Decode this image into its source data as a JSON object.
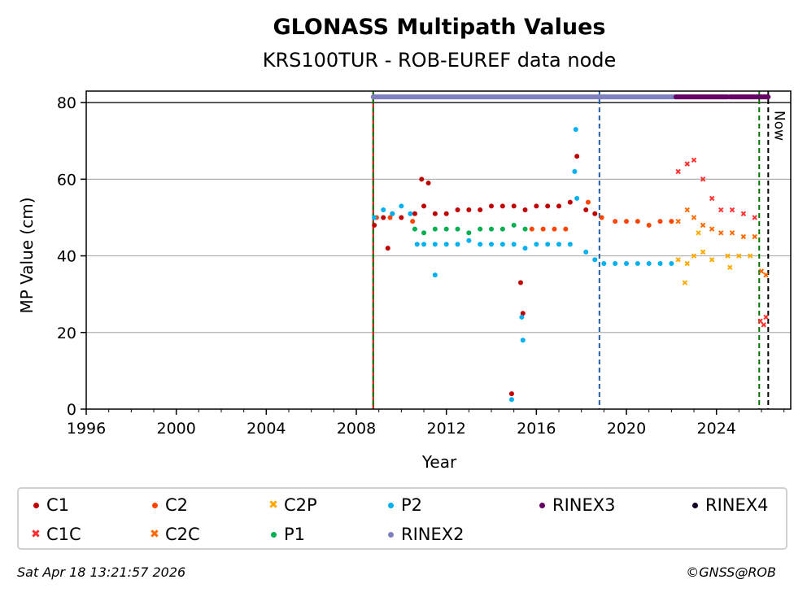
{
  "chart_data": {
    "type": "scatter",
    "title": "GLONASS Multipath Values",
    "subtitle": "KRS100TUR - ROB-EUREF data node",
    "xlabel": "Year",
    "ylabel": "MP Value (cm)",
    "xlim": [
      1996,
      2027.3
    ],
    "ylim": [
      0,
      83
    ],
    "x_ticks": [
      "1996",
      "2000",
      "2004",
      "2008",
      "2012",
      "2016",
      "2020",
      "2024"
    ],
    "y_ticks": [
      "0",
      "20",
      "40",
      "60",
      "80"
    ],
    "grid": "horizontal",
    "now_label": "Now",
    "events": [
      {
        "year": 2008.75,
        "type": "start-marker",
        "color": "#cc0000"
      },
      {
        "year": 2008.75,
        "type": "receiver-change",
        "color": "#007700"
      },
      {
        "year": 2018.8,
        "type": "antenna-change",
        "color": "#1f5fa8"
      },
      {
        "year": 2025.9,
        "type": "receiver-change",
        "color": "#007700"
      },
      {
        "year": 2026.3,
        "type": "now",
        "color": "#000000"
      }
    ],
    "series": [
      {
        "name": "C1",
        "marker": "dot",
        "color": "#c00000",
        "points": [
          [
            2008.8,
            48
          ],
          [
            2009.2,
            50
          ],
          [
            2009.6,
            51
          ],
          [
            2010.0,
            50
          ],
          [
            2010.6,
            51
          ],
          [
            2011.0,
            53
          ],
          [
            2011.5,
            51
          ],
          [
            2012.0,
            51
          ],
          [
            2012.5,
            52
          ],
          [
            2013.0,
            52
          ],
          [
            2013.5,
            52
          ],
          [
            2014.0,
            53
          ],
          [
            2014.5,
            53
          ],
          [
            2015.0,
            53
          ],
          [
            2015.5,
            52
          ],
          [
            2016.0,
            53
          ],
          [
            2016.5,
            53
          ],
          [
            2017.0,
            53
          ],
          [
            2017.5,
            54
          ],
          [
            2017.8,
            66
          ],
          [
            2018.2,
            52
          ],
          [
            2018.6,
            51
          ],
          [
            2010.9,
            60
          ],
          [
            2011.2,
            59
          ],
          [
            2009.4,
            42
          ],
          [
            2014.9,
            4
          ],
          [
            2015.4,
            25
          ],
          [
            2015.3,
            33
          ]
        ]
      },
      {
        "name": "C1C",
        "marker": "x",
        "color": "#ff3030",
        "points": [
          [
            2022.3,
            62
          ],
          [
            2022.7,
            64
          ],
          [
            2023.0,
            65
          ],
          [
            2023.4,
            60
          ],
          [
            2023.8,
            55
          ],
          [
            2024.2,
            52
          ],
          [
            2024.7,
            52
          ],
          [
            2025.2,
            51
          ],
          [
            2025.7,
            50
          ],
          [
            2025.95,
            23
          ],
          [
            2026.1,
            22
          ],
          [
            2026.2,
            24
          ]
        ]
      },
      {
        "name": "C2",
        "marker": "dot",
        "color": "#ff4500",
        "points": [
          [
            2008.9,
            50
          ],
          [
            2009.5,
            50
          ],
          [
            2010.5,
            49
          ],
          [
            2015.8,
            47
          ],
          [
            2016.3,
            47
          ],
          [
            2016.8,
            47
          ],
          [
            2017.3,
            47
          ],
          [
            2018.3,
            54
          ],
          [
            2018.9,
            50
          ],
          [
            2019.5,
            49
          ],
          [
            2020.0,
            49
          ],
          [
            2020.5,
            49
          ],
          [
            2021.0,
            48
          ],
          [
            2021.5,
            49
          ],
          [
            2022.0,
            49
          ]
        ]
      },
      {
        "name": "C2C",
        "marker": "x",
        "color": "#ff6a00",
        "points": [
          [
            2022.3,
            49
          ],
          [
            2022.7,
            52
          ],
          [
            2023.0,
            50
          ],
          [
            2023.4,
            48
          ],
          [
            2023.8,
            47
          ],
          [
            2024.2,
            46
          ],
          [
            2024.7,
            46
          ],
          [
            2025.2,
            45
          ],
          [
            2025.7,
            45
          ],
          [
            2026.0,
            36
          ],
          [
            2026.2,
            35
          ]
        ]
      },
      {
        "name": "C2P",
        "marker": "x",
        "color": "#ffaa00",
        "points": [
          [
            2022.3,
            39
          ],
          [
            2022.7,
            38
          ],
          [
            2023.0,
            40
          ],
          [
            2023.4,
            41
          ],
          [
            2023.8,
            39
          ],
          [
            2024.5,
            40
          ],
          [
            2025.0,
            40
          ],
          [
            2025.5,
            40
          ],
          [
            2022.6,
            33
          ],
          [
            2023.2,
            46
          ],
          [
            2024.6,
            37
          ]
        ]
      },
      {
        "name": "P1",
        "marker": "dot",
        "color": "#00b050",
        "points": [
          [
            2010.6,
            47
          ],
          [
            2011.0,
            46
          ],
          [
            2011.5,
            47
          ],
          [
            2012.0,
            47
          ],
          [
            2012.5,
            47
          ],
          [
            2013.0,
            46
          ],
          [
            2013.5,
            47
          ],
          [
            2014.0,
            47
          ],
          [
            2014.5,
            47
          ],
          [
            2015.0,
            48
          ],
          [
            2015.5,
            47
          ]
        ]
      },
      {
        "name": "P2",
        "marker": "dot",
        "color": "#00b0f0",
        "points": [
          [
            2008.8,
            50
          ],
          [
            2009.2,
            52
          ],
          [
            2009.6,
            51
          ],
          [
            2010.0,
            53
          ],
          [
            2010.4,
            51
          ],
          [
            2010.7,
            43
          ],
          [
            2011.0,
            43
          ],
          [
            2011.5,
            43
          ],
          [
            2012.0,
            43
          ],
          [
            2012.5,
            43
          ],
          [
            2013.0,
            44
          ],
          [
            2013.5,
            43
          ],
          [
            2014.0,
            43
          ],
          [
            2014.5,
            43
          ],
          [
            2015.0,
            43
          ],
          [
            2015.5,
            42
          ],
          [
            2016.0,
            43
          ],
          [
            2016.5,
            43
          ],
          [
            2017.0,
            43
          ],
          [
            2017.5,
            43
          ],
          [
            2017.7,
            62
          ],
          [
            2017.75,
            73
          ],
          [
            2017.8,
            55
          ],
          [
            2018.2,
            41
          ],
          [
            2018.6,
            39
          ],
          [
            2019.0,
            38
          ],
          [
            2019.5,
            38
          ],
          [
            2020.0,
            38
          ],
          [
            2020.5,
            38
          ],
          [
            2021.0,
            38
          ],
          [
            2021.5,
            38
          ],
          [
            2022.0,
            38
          ],
          [
            2014.9,
            2.5
          ],
          [
            2015.4,
            18
          ],
          [
            2015.35,
            24
          ],
          [
            2011.5,
            35
          ]
        ]
      },
      {
        "name": "RINEX2",
        "marker": "dot",
        "color": "#8080c0",
        "segments": [
          [
            2008.75,
            2022.2
          ]
        ],
        "level": 81.5
      },
      {
        "name": "RINEX3",
        "marker": "dot",
        "color": "#660066",
        "segments": [
          [
            2022.2,
            2024.5
          ],
          [
            2024.6,
            2026.3
          ]
        ],
        "level": 81.5
      },
      {
        "name": "RINEX4",
        "marker": "dot",
        "color": "#110022",
        "segments": [],
        "level": 81.5
      }
    ]
  },
  "legend": [
    {
      "name": "C1",
      "color": "#c00000",
      "marker": "dot"
    },
    {
      "name": "C2",
      "color": "#ff4500",
      "marker": "dot"
    },
    {
      "name": "C2P",
      "color": "#ffaa00",
      "marker": "x"
    },
    {
      "name": "P2",
      "color": "#00b0f0",
      "marker": "dot"
    },
    {
      "name": "RINEX3",
      "color": "#660066",
      "marker": "dot"
    },
    {
      "name": "RINEX4",
      "color": "#110022",
      "marker": "dot"
    },
    {
      "name": "C1C",
      "color": "#ff3030",
      "marker": "x"
    },
    {
      "name": "C2C",
      "color": "#ff6a00",
      "marker": "x"
    },
    {
      "name": "P1",
      "color": "#00b050",
      "marker": "dot"
    },
    {
      "name": "RINEX2",
      "color": "#8080c0",
      "marker": "dot"
    }
  ],
  "footer": {
    "timestamp": "Sat Apr 18 13:21:57 2026",
    "credit": "©GNSS@ROB"
  }
}
